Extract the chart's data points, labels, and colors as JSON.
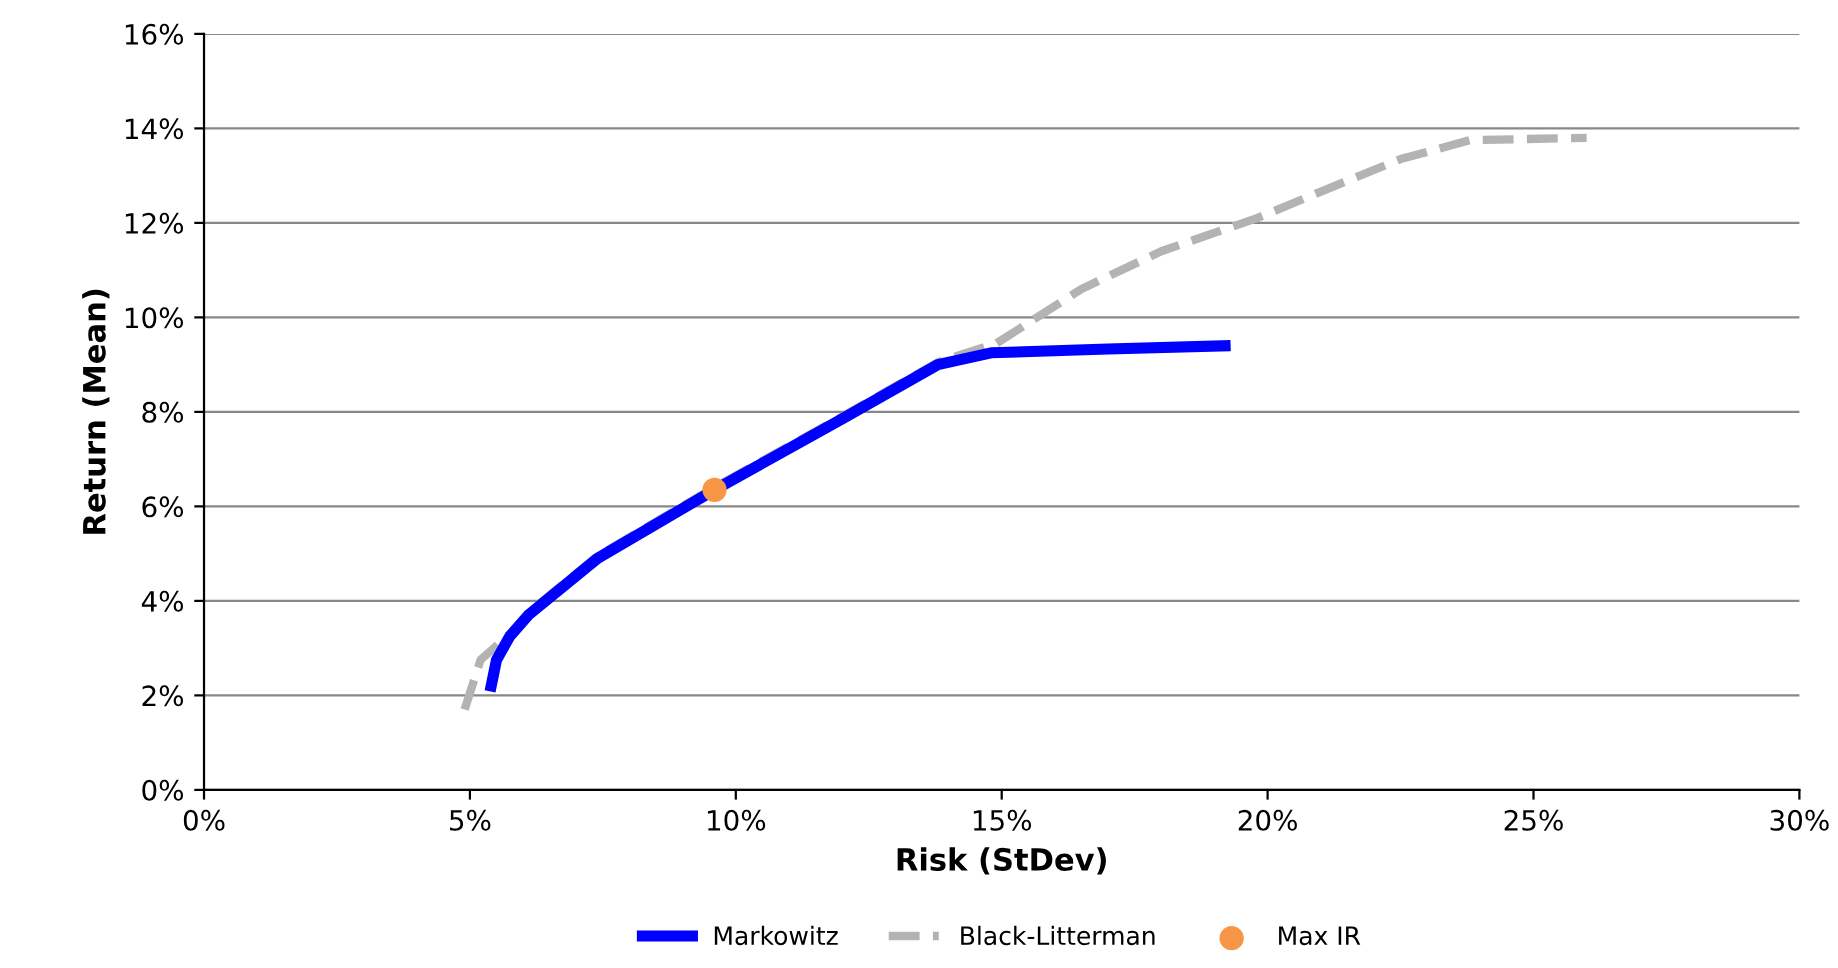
{
  "chart_data": {
    "type": "line",
    "xlabel": "Risk (StDev)",
    "ylabel": "Return (Mean)",
    "xlim": [
      0,
      30
    ],
    "ylim": [
      0,
      16
    ],
    "xticks": [
      {
        "value": 0,
        "label": "0%"
      },
      {
        "value": 5,
        "label": "5%"
      },
      {
        "value": 10,
        "label": "10%"
      },
      {
        "value": 15,
        "label": "15%"
      },
      {
        "value": 20,
        "label": "20%"
      },
      {
        "value": 25,
        "label": "25%"
      },
      {
        "value": 30,
        "label": "30%"
      }
    ],
    "yticks": [
      {
        "value": 0,
        "label": "0%"
      },
      {
        "value": 2,
        "label": "2%"
      },
      {
        "value": 4,
        "label": "4%"
      },
      {
        "value": 6,
        "label": "6%"
      },
      {
        "value": 8,
        "label": "8%"
      },
      {
        "value": 10,
        "label": "10%"
      },
      {
        "value": 12,
        "label": "12%"
      },
      {
        "value": 14,
        "label": "14%"
      },
      {
        "value": 16,
        "label": "16%"
      }
    ],
    "grid": "y",
    "legend": "bottom",
    "marker": "none",
    "series": [
      {
        "name": "Markowitz",
        "color": "#0000ff",
        "line_style": "solid",
        "x": [
          5.4,
          5.5,
          5.75,
          6.1,
          7.4,
          9.6,
          12,
          13.8,
          14.8,
          17,
          19.2
        ],
        "values": [
          2.2,
          2.75,
          3.25,
          3.7,
          4.9,
          6.35,
          7.85,
          9.0,
          9.25,
          9.33,
          9.4
        ]
      },
      {
        "name": "Black-Litterman",
        "color": "#b3b3b3",
        "line_style": "dashed",
        "x": [
          4.9,
          5.2,
          5.75,
          6.1,
          7.4,
          9.6,
          12,
          13.8,
          14.9,
          16.5,
          18,
          19.8,
          21.3,
          22.5,
          23.8,
          26
        ],
        "values": [
          1.7,
          2.75,
          3.3,
          3.75,
          4.95,
          6.4,
          7.9,
          9.05,
          9.45,
          10.6,
          11.4,
          12.1,
          12.8,
          13.35,
          13.75,
          13.8
        ]
      },
      {
        "name": "Max IR",
        "type": "scatter",
        "color": "#f79646",
        "marker": "circle",
        "x": [
          9.6
        ],
        "values": [
          6.35
        ]
      }
    ]
  }
}
